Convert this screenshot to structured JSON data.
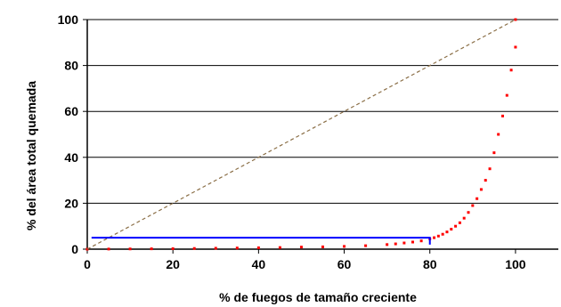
{
  "chart_data": {
    "type": "scatter",
    "title": "",
    "xlabel": "% de fuegos de tamaño creciente",
    "ylabel": "% del área total quemada",
    "xlim": [
      0,
      110
    ],
    "ylim": [
      0,
      100
    ],
    "xticks": [
      0,
      20,
      40,
      60,
      80,
      100
    ],
    "yticks": [
      0,
      20,
      40,
      60,
      80,
      100
    ],
    "xtick_labels": [
      "0",
      "20",
      "40",
      "60",
      "80",
      "100"
    ],
    "ytick_labels": [
      "0",
      "20",
      "40",
      "60",
      "80",
      "100"
    ],
    "grid": "horizontal",
    "legend": "none",
    "series": [
      {
        "kind": "points",
        "color": "#ff0000",
        "x": [
          0,
          5,
          10,
          15,
          20,
          25,
          30,
          35,
          40,
          45,
          50,
          55,
          60,
          65,
          70,
          72,
          74,
          76,
          78,
          80,
          81,
          82,
          83,
          84,
          85,
          86,
          87,
          88,
          89,
          90,
          91,
          92,
          93,
          94,
          95,
          96,
          97,
          98,
          99,
          100
        ],
        "y": [
          0,
          0.05,
          0.1,
          0.15,
          0.2,
          0.3,
          0.4,
          0.5,
          0.6,
          0.7,
          0.9,
          1.0,
          1.2,
          1.5,
          2.0,
          2.3,
          2.7,
          3.1,
          3.6,
          4.5,
          5.0,
          5.7,
          6.5,
          7.5,
          8.7,
          10,
          11.5,
          13.5,
          16,
          19,
          22,
          26,
          30,
          35,
          42,
          50,
          58,
          67,
          78,
          88
        ]
      },
      {
        "kind": "points",
        "color": "#ff0000",
        "x": [
          100
        ],
        "y": [
          100
        ]
      },
      {
        "kind": "dashed-line",
        "color": "#8b6f47",
        "x": [
          0,
          100
        ],
        "y": [
          0,
          100
        ]
      },
      {
        "kind": "line",
        "color": "#0000ff",
        "x": [
          1,
          80,
          80
        ],
        "y": [
          5,
          5,
          2
        ]
      }
    ]
  }
}
